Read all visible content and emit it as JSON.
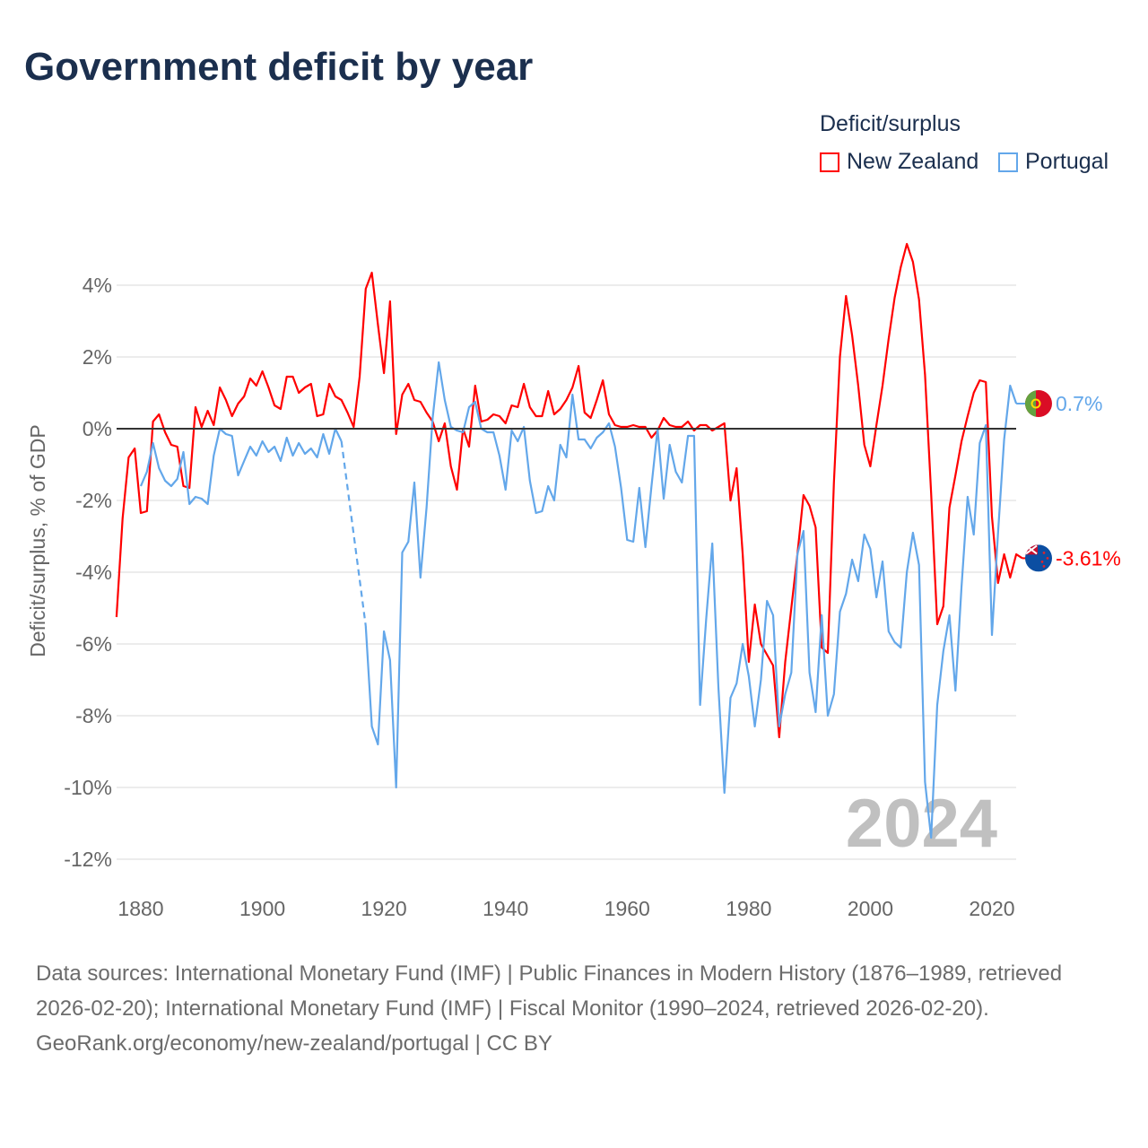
{
  "title": "Government deficit by year",
  "legend": {
    "title": "Deficit/surplus",
    "items": [
      {
        "label": "New Zealand",
        "color": "#ff0000"
      },
      {
        "label": "Portugal",
        "color": "#63a7ea"
      }
    ]
  },
  "footer": {
    "sources": "Data sources: International Monetary Fund (IMF) | Public Finances in Modern History (1876–1989, retrieved 2026-02-20); International Monetary Fund (IMF) | Fiscal Monitor (1990–2024, retrieved 2026-02-20).",
    "link": "GeoRank.org/economy/new-zealand/portugal | CC BY"
  },
  "chart_data": {
    "type": "line",
    "title": "Government deficit by year",
    "ylabel": "Deficit/surplus, % of GDP",
    "xlabel": "",
    "xlim": [
      1876,
      2024
    ],
    "ylim": [
      -12.5,
      5.2
    ],
    "xticks": [
      1880,
      1900,
      1920,
      1940,
      1960,
      1980,
      2000,
      2020
    ],
    "yticks": [
      {
        "v": 4,
        "label": "4%"
      },
      {
        "v": 2,
        "label": "2%"
      },
      {
        "v": 0,
        "label": "0%"
      },
      {
        "v": -2,
        "label": "-2%"
      },
      {
        "v": -4,
        "label": "-4%"
      },
      {
        "v": -6,
        "label": "-6%"
      },
      {
        "v": -8,
        "label": "-8%"
      },
      {
        "v": -10,
        "label": "-10%"
      },
      {
        "v": -12,
        "label": "-12%"
      }
    ],
    "grid": true,
    "legend_position": "top-right",
    "year_watermark": "2024",
    "series": [
      {
        "name": "New Zealand",
        "color": "#ff0000",
        "start": 1876,
        "end_label": "-3.61%",
        "flag": "new-zealand",
        "values": [
          -5.25,
          -2.5,
          -0.8,
          -0.55,
          -2.35,
          -2.3,
          0.2,
          0.4,
          -0.1,
          -0.45,
          -0.5,
          -1.6,
          -1.65,
          0.6,
          0.05,
          0.5,
          0.1,
          1.15,
          0.8,
          0.35,
          0.7,
          0.9,
          1.4,
          1.2,
          1.6,
          1.15,
          0.65,
          0.55,
          1.45,
          1.45,
          1.0,
          1.15,
          1.25,
          0.35,
          0.4,
          1.25,
          0.9,
          0.8,
          0.45,
          0.05,
          1.45,
          3.9,
          4.35,
          2.9,
          1.55,
          3.55,
          -0.15,
          0.95,
          1.25,
          0.8,
          0.75,
          0.45,
          0.2,
          -0.35,
          0.15,
          -1.05,
          -1.7,
          0.0,
          -0.5,
          1.2,
          0.2,
          0.25,
          0.4,
          0.35,
          0.15,
          0.65,
          0.6,
          1.25,
          0.6,
          0.35,
          0.35,
          1.05,
          0.4,
          0.55,
          0.8,
          1.15,
          1.75,
          0.45,
          0.3,
          0.8,
          1.35,
          0.4,
          0.1,
          0.05,
          0.05,
          0.1,
          0.05,
          0.05,
          -0.25,
          -0.05,
          0.3,
          0.1,
          0.05,
          0.05,
          0.2,
          -0.05,
          0.1,
          0.1,
          -0.05,
          0.05,
          0.15,
          -2.0,
          -1.1,
          -3.5,
          -6.5,
          -4.9,
          -6.0,
          -6.3,
          -6.6,
          -8.6,
          -6.5,
          -5.0,
          -3.5,
          -1.85,
          -2.15,
          -2.75,
          -6.1,
          -6.25,
          -1.5,
          2.0,
          3.7,
          2.6,
          1.2,
          -0.45,
          -1.05,
          0.1,
          1.2,
          2.5,
          3.65,
          4.5,
          5.15,
          4.65,
          3.6,
          1.5,
          -1.8,
          -5.45,
          -4.95,
          -2.2,
          -1.3,
          -0.35,
          0.35,
          1.0,
          1.35,
          1.3,
          -2.45,
          -4.3,
          -3.5,
          -4.15,
          -3.5,
          -3.61
        ]
      },
      {
        "name": "Portugal",
        "color": "#63a7ea",
        "start": 1880,
        "end_label": "0.7%",
        "flag": "portugal",
        "values": [
          -1.6,
          -1.2,
          -0.4,
          -1.1,
          -1.45,
          -1.6,
          -1.4,
          -0.65,
          -2.1,
          -1.9,
          -1.95,
          -2.1,
          -0.75,
          0.0,
          -0.15,
          -0.2,
          -1.3,
          -0.9,
          -0.5,
          -0.75,
          -0.35,
          -0.65,
          -0.5,
          -0.9,
          -0.25,
          -0.75,
          -0.4,
          -0.7,
          -0.55,
          -0.8,
          -0.15,
          -0.7,
          0.0,
          -0.35,
          null,
          null,
          null,
          -5.5,
          -8.3,
          -8.8,
          -5.65,
          -6.45,
          -10.0,
          -3.45,
          -3.15,
          -1.5,
          -4.15,
          -2.2,
          0.3,
          1.85,
          0.8,
          0.05,
          -0.05,
          -0.1,
          0.6,
          0.75,
          0.0,
          -0.1,
          -0.1,
          -0.75,
          -1.7,
          -0.05,
          -0.35,
          0.05,
          -1.45,
          -2.35,
          -2.3,
          -1.6,
          -2.0,
          -0.45,
          -0.8,
          0.95,
          -0.3,
          -0.3,
          -0.55,
          -0.25,
          -0.1,
          0.15,
          -0.5,
          -1.65,
          -3.1,
          -3.15,
          -1.65,
          -3.3,
          -1.6,
          0.0,
          -1.95,
          -0.45,
          -1.2,
          -1.5,
          -0.2,
          -0.2,
          -7.7,
          -5.3,
          -3.2,
          -7.2,
          -10.15,
          -7.5,
          -7.1,
          -6.0,
          -6.9,
          -8.3,
          -7.0,
          -4.8,
          -5.2,
          -8.3,
          -7.4,
          -6.8,
          -3.5,
          -2.85,
          -6.8,
          -7.9,
          -5.2,
          -8.0,
          -7.4,
          -5.1,
          -4.6,
          -3.65,
          -4.25,
          -2.95,
          -3.35,
          -4.7,
          -3.7,
          -5.65,
          -5.95,
          -6.1,
          -4.0,
          -2.9,
          -3.8,
          -9.85,
          -11.4,
          -7.7,
          -6.2,
          -5.2,
          -7.3,
          -4.4,
          -1.9,
          -2.95,
          -0.4,
          0.1,
          -5.75,
          -2.9,
          -0.3,
          1.2,
          0.7
        ]
      }
    ]
  }
}
